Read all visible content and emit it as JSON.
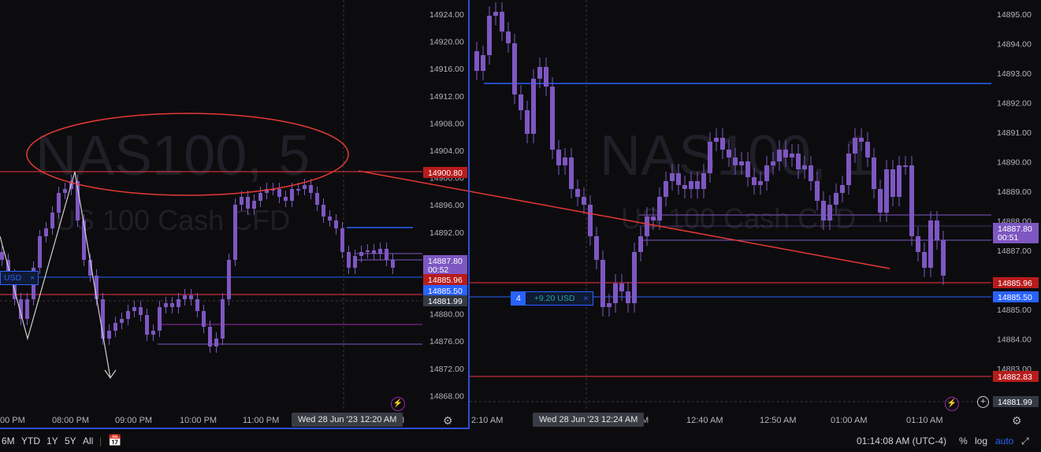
{
  "left_chart": {
    "symbol_watermark": "NAS100, 5",
    "subtitle_watermark": "US 100 Cash CFD",
    "price_labels": [
      "14924.00",
      "14920.00",
      "14916.00",
      "14912.00",
      "14908.00",
      "14904.00",
      "14900.00",
      "14896.00",
      "14892.00",
      "14888.00",
      "14884.00",
      "14880.00",
      "14876.00",
      "14872.00",
      "14868.00"
    ],
    "time_labels": [
      "00 PM",
      "08:00 PM",
      "09:00 PM",
      "10:00 PM",
      "11:00 PM",
      "M"
    ],
    "crosshair_time": "Wed 28 Jun '23   12:20 AM",
    "tags": {
      "red_level": "14900.80",
      "last_price": "14887.80",
      "countdown": "00:52",
      "level_red2": "14885.96",
      "level_blue": "14885.50",
      "level_gray": "14881.99"
    },
    "position_tag": "USD"
  },
  "right_chart": {
    "symbol_watermark": "NAS100, 1",
    "subtitle_watermark": "US 100 Cash CFD",
    "price_labels": [
      "14895.00",
      "14894.00",
      "14893.00",
      "14892.00",
      "14891.00",
      "14890.00",
      "14889.00",
      "14888.00",
      "14887.00",
      "14886.00",
      "14885.00",
      "14884.00",
      "14883.00"
    ],
    "time_labels": [
      "2:10 AM",
      "M",
      "12:40 AM",
      "12:50 AM",
      "01:00 AM",
      "01:10 AM"
    ],
    "crosshair_time": "Wed 28 Jun '23   12:24 AM",
    "tags": {
      "last_price": "14887.80",
      "countdown": "00:51",
      "level_red2": "14885.96",
      "level_blue": "14885.50",
      "level_red_low": "14882.83",
      "level_gray": "14881.99"
    },
    "position": {
      "qty": "4",
      "pnl": "+9.20 USD",
      "close": "×"
    }
  },
  "bottom_bar": {
    "timeframes": [
      "6M",
      "YTD",
      "1Y",
      "5Y",
      "All"
    ],
    "clock": "01:14:08 AM (UTC-4)",
    "percent": "%",
    "log": "log",
    "auto": "auto"
  },
  "colors": {
    "bg": "#0c0c0e",
    "candle": "#7e57c2",
    "red_line": "#f23645",
    "blue_line": "#2962ff",
    "annotation_red": "#e53935"
  }
}
